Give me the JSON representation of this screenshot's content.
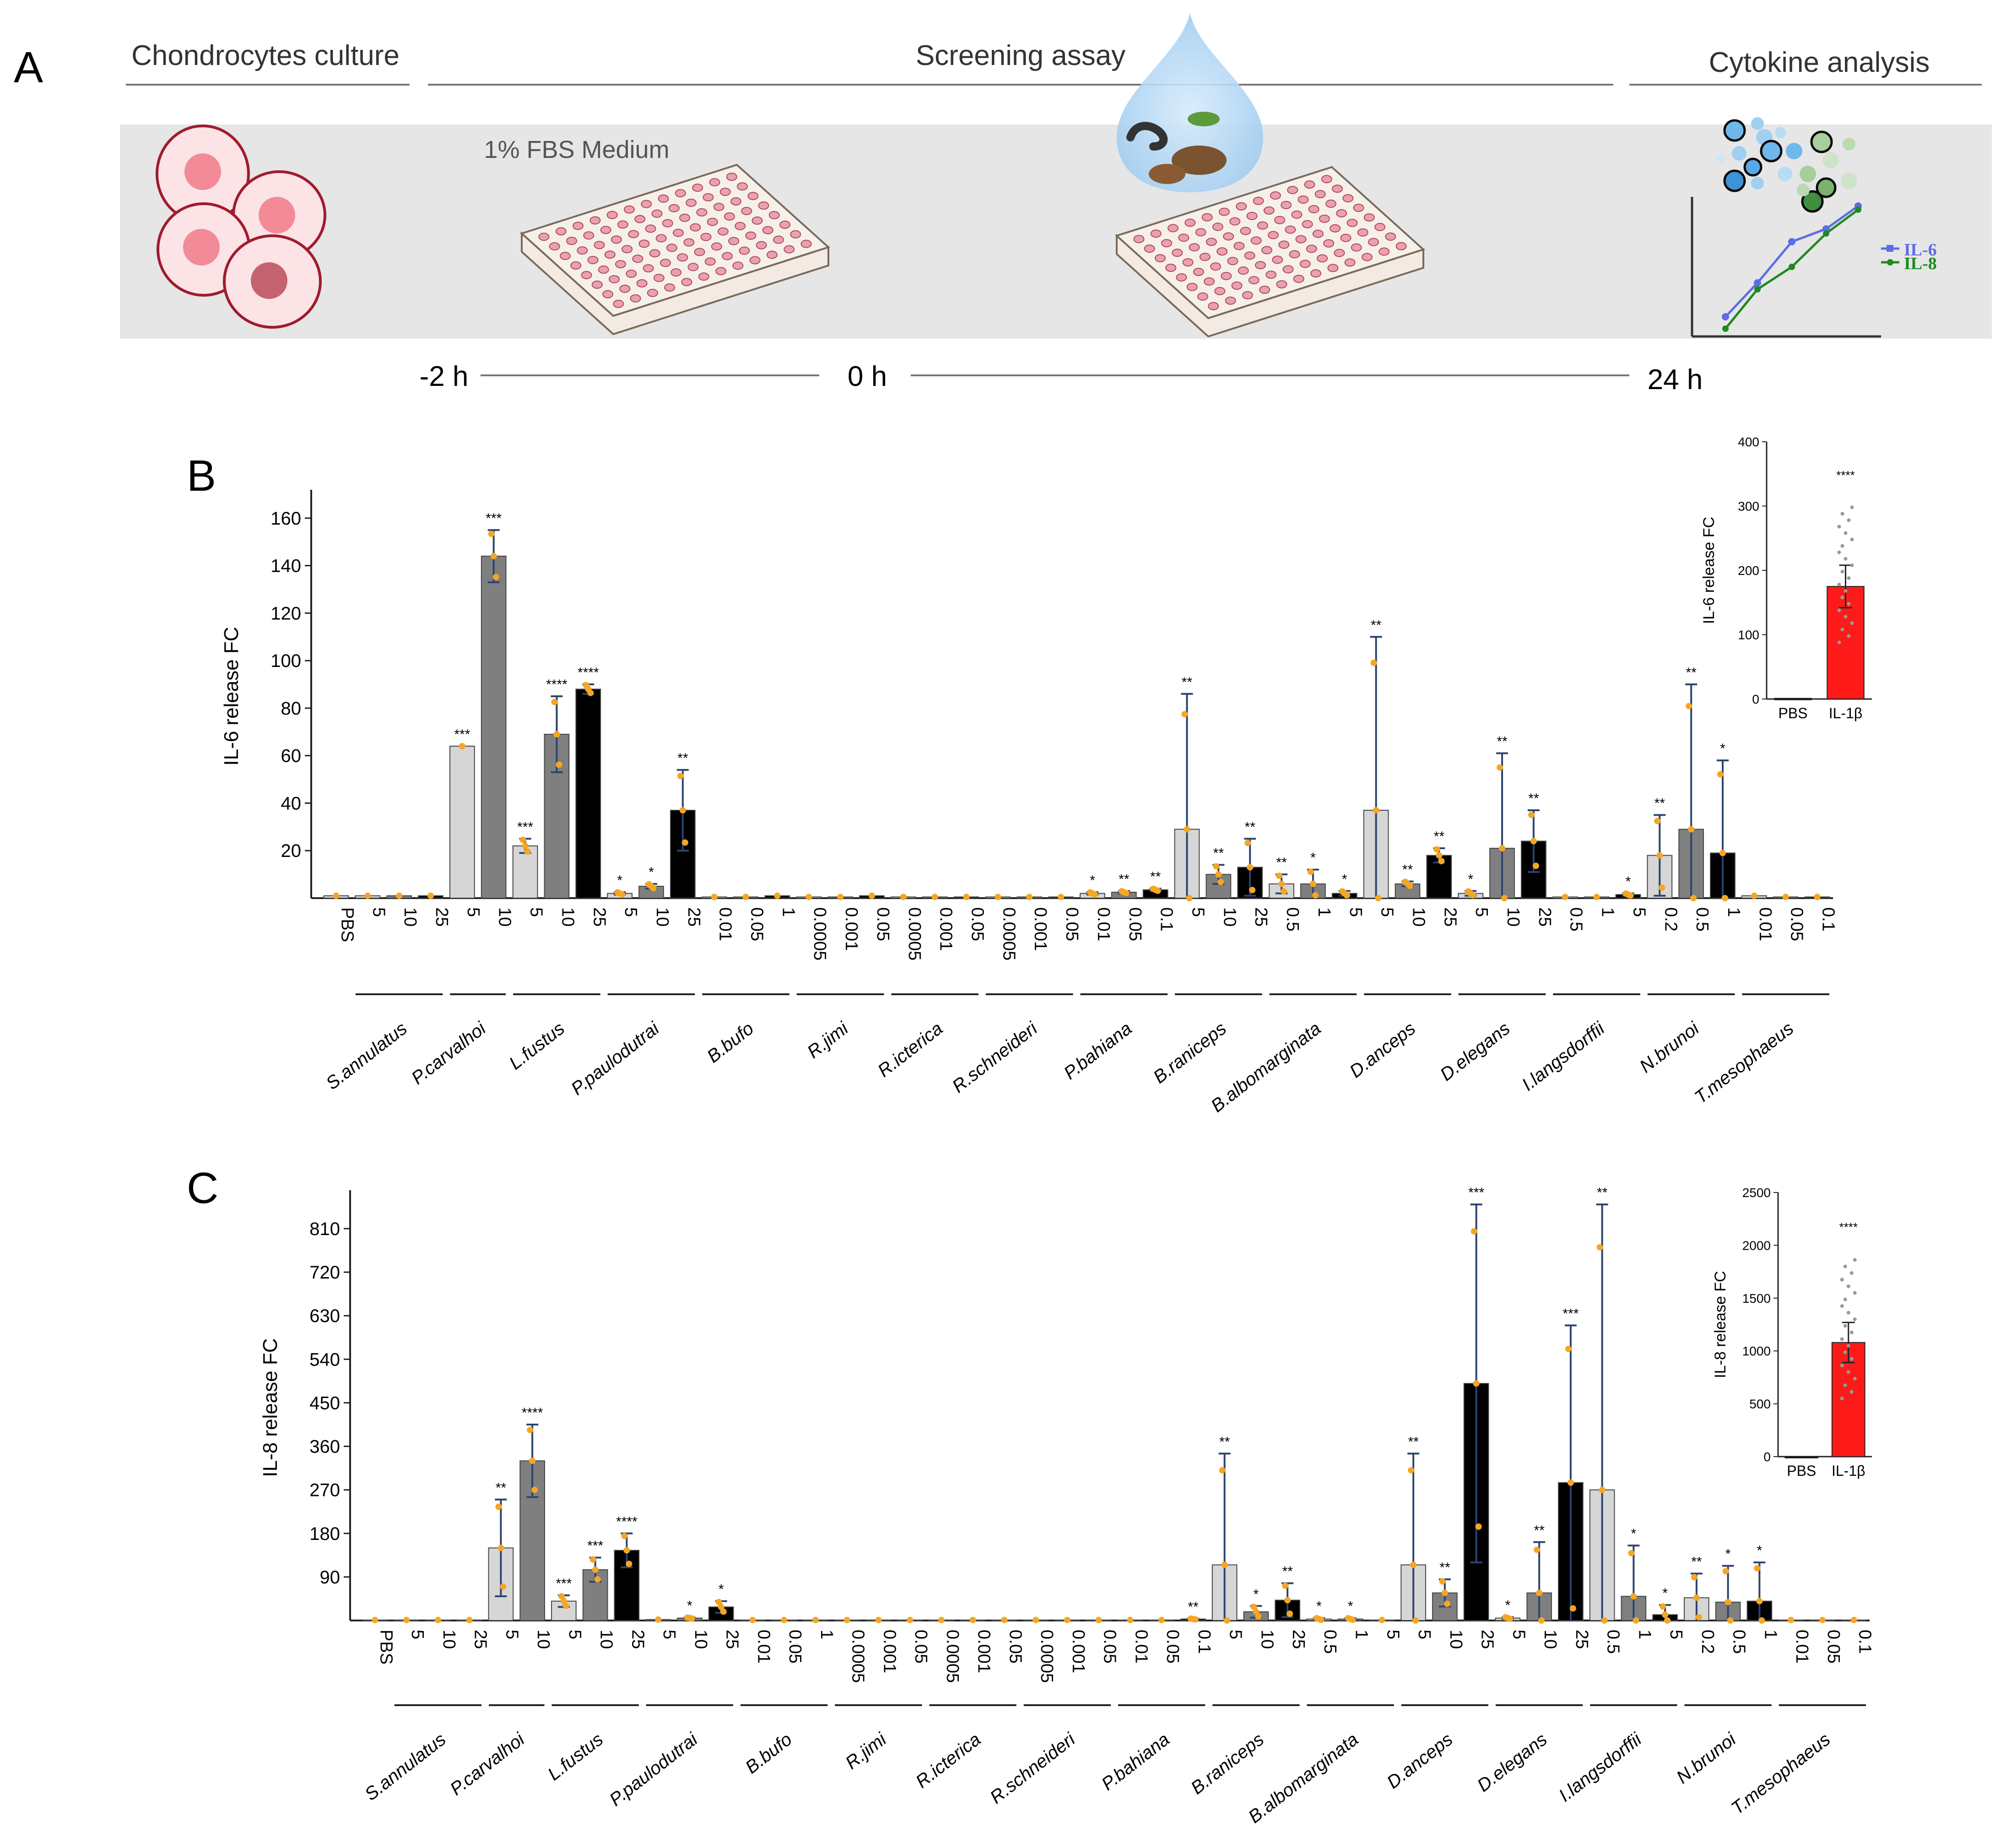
{
  "panel_a": {
    "letter": "A",
    "sections": [
      "Chondrocytes culture",
      "Screening assay",
      "Cytokine analysis"
    ],
    "medium_label": "1% FBS Medium",
    "timeline": [
      "-2 h",
      "0 h",
      "24 h"
    ],
    "legend": [
      {
        "label": "IL-6",
        "color": "#5b6de8"
      },
      {
        "label": "IL-8",
        "color": "#1f8a1f"
      }
    ]
  },
  "chart_data": [
    {
      "type": "bar",
      "panel": "B",
      "ylabel": "IL-6 release FC",
      "ylim": [
        0,
        170
      ],
      "yticks": [
        20,
        40,
        60,
        80,
        100,
        120,
        140,
        160
      ],
      "categories": [
        "PBS",
        "5",
        "10",
        "25",
        "5",
        "10",
        "5",
        "10",
        "25",
        "5",
        "10",
        "25",
        "0.01",
        "0.05",
        "1",
        "0.0005",
        "0.001",
        "0.05",
        "0.0005",
        "0.001",
        "0.05",
        "0.0005",
        "0.001",
        "0.05",
        "0.01",
        "0.05",
        "0.1",
        "5",
        "10",
        "25",
        "0.5",
        "1",
        "5",
        "5",
        "10",
        "25",
        "5",
        "10",
        "25",
        "0.5",
        "1",
        "5",
        "0.2",
        "0.5",
        "1",
        "0.01",
        "0.05",
        "0.1"
      ],
      "shades": [
        0,
        0,
        1,
        2,
        0,
        1,
        0,
        1,
        2,
        0,
        1,
        2,
        0,
        1,
        2,
        0,
        1,
        2,
        0,
        1,
        2,
        0,
        1,
        2,
        0,
        1,
        2,
        0,
        1,
        2,
        0,
        1,
        2,
        0,
        1,
        2,
        0,
        1,
        2,
        0,
        1,
        2,
        0,
        1,
        2,
        0,
        1,
        2
      ],
      "values": [
        1,
        1,
        1,
        1,
        64,
        144,
        22,
        69,
        88,
        2,
        5,
        37,
        0.5,
        0.5,
        1,
        0.5,
        0.5,
        1,
        0.5,
        0.5,
        0.5,
        0.5,
        0.5,
        0.5,
        2,
        2.5,
        3.5,
        29,
        10,
        13,
        6,
        6,
        2,
        37,
        6,
        18,
        2,
        21,
        24,
        0.5,
        0.5,
        1.5,
        18,
        29,
        19,
        1,
        0.5,
        0.5
      ],
      "errors": [
        0,
        0,
        0,
        0,
        0,
        11,
        3,
        16,
        2,
        0.5,
        1,
        17,
        0,
        0,
        0,
        0,
        0,
        0,
        0,
        0,
        0,
        0,
        0,
        0,
        0.5,
        0.5,
        0.5,
        57,
        4,
        12,
        4,
        6,
        1,
        73,
        1,
        3,
        1,
        40,
        13,
        0,
        0,
        0.5,
        17,
        61,
        39,
        0,
        0,
        0
      ],
      "significance": [
        "",
        "",
        "",
        "",
        "***",
        "***",
        "***",
        "****",
        "****",
        "*",
        "*",
        "**",
        "",
        "",
        "",
        "",
        "",
        "",
        "",
        "",
        "",
        "",
        "",
        "",
        "*",
        "**",
        "**",
        "**",
        "**",
        "**",
        "**",
        "*",
        "*",
        "**",
        "**",
        "**",
        "*",
        "**",
        "**",
        "",
        "",
        "*",
        "**",
        "**",
        "*",
        "",
        "",
        ""
      ],
      "groups": [
        {
          "name": "S.annulatus",
          "start": 1,
          "end": 3
        },
        {
          "name": "P.carvalhoi",
          "start": 4,
          "end": 5
        },
        {
          "name": "L.fustus",
          "start": 6,
          "end": 8
        },
        {
          "name": "P.paulodutrai",
          "start": 9,
          "end": 11
        },
        {
          "name": "B.bufo",
          "start": 12,
          "end": 14
        },
        {
          "name": "R.jimi",
          "start": 15,
          "end": 17
        },
        {
          "name": "R.icterica",
          "start": 18,
          "end": 20
        },
        {
          "name": "R.schneideri",
          "start": 21,
          "end": 23
        },
        {
          "name": "P.bahiana",
          "start": 24,
          "end": 26
        },
        {
          "name": "B.raniceps",
          "start": 27,
          "end": 29
        },
        {
          "name": "B.albomarginata",
          "start": 30,
          "end": 32
        },
        {
          "name": "D.anceps",
          "start": 33,
          "end": 35
        },
        {
          "name": "D.elegans",
          "start": 36,
          "end": 38
        },
        {
          "name": "I.langsdorffii",
          "start": 39,
          "end": 41
        },
        {
          "name": "N.brunoi",
          "start": 42,
          "end": 44
        },
        {
          "name": "T.mesophaeus",
          "start": 45,
          "end": 47
        }
      ],
      "inset": {
        "ylabel": "IL-6 release FC",
        "ylim": [
          0,
          400
        ],
        "yticks": [
          0,
          100,
          200,
          300,
          400
        ],
        "categories": [
          "PBS",
          "IL-1β"
        ],
        "values": [
          1,
          175
        ],
        "errors": [
          0,
          33
        ],
        "significance": "****",
        "bar_color": "#ff1a1a"
      }
    },
    {
      "type": "bar",
      "panel": "C",
      "ylabel": "IL-8 release FC",
      "ylim": [
        0,
        880
      ],
      "yticks": [
        90,
        180,
        270,
        360,
        450,
        540,
        630,
        720,
        810
      ],
      "categories": [
        "PBS",
        "5",
        "10",
        "25",
        "5",
        "10",
        "5",
        "10",
        "25",
        "5",
        "10",
        "25",
        "0.01",
        "0.05",
        "1",
        "0.0005",
        "0.001",
        "0.05",
        "0.0005",
        "0.001",
        "0.05",
        "0.0005",
        "0.001",
        "0.05",
        "0.01",
        "0.05",
        "0.1",
        "5",
        "10",
        "25",
        "0.5",
        "1",
        "5",
        "5",
        "10",
        "25",
        "5",
        "10",
        "25",
        "0.5",
        "1",
        "5",
        "0.2",
        "0.5",
        "1",
        "0.01",
        "0.05",
        "0.1"
      ],
      "shades": [
        0,
        0,
        1,
        2,
        0,
        1,
        0,
        1,
        2,
        0,
        1,
        2,
        0,
        1,
        2,
        0,
        1,
        2,
        0,
        1,
        2,
        0,
        1,
        2,
        0,
        1,
        2,
        0,
        1,
        2,
        0,
        1,
        2,
        0,
        1,
        2,
        0,
        1,
        2,
        0,
        1,
        2,
        0,
        1,
        2,
        0,
        1,
        2
      ],
      "values": [
        1,
        1,
        1,
        1,
        150,
        330,
        40,
        105,
        145,
        2,
        5,
        28,
        1,
        1,
        1,
        1,
        1,
        1,
        1,
        1,
        1,
        1,
        1,
        1,
        1,
        1,
        3,
        115,
        18,
        42,
        3,
        3,
        1,
        115,
        57,
        490,
        5,
        57,
        285,
        270,
        50,
        12,
        47,
        38,
        40,
        1,
        1,
        1
      ],
      "errors": [
        0,
        0,
        0,
        0,
        100,
        75,
        12,
        25,
        35,
        0,
        1,
        12,
        0,
        0,
        0,
        0,
        0,
        0,
        0,
        0,
        0,
        0,
        0,
        0,
        0,
        0,
        1,
        230,
        12,
        35,
        2,
        2,
        0,
        230,
        28,
        370,
        2,
        105,
        325,
        590,
        105,
        20,
        50,
        75,
        80,
        0,
        0,
        0
      ],
      "significance": [
        "",
        "",
        "",
        "",
        "**",
        "****",
        "***",
        "***",
        "****",
        "",
        "*",
        "*",
        "",
        "",
        "",
        "",
        "",
        "",
        "",
        "",
        "",
        "",
        "",
        "",
        "",
        "",
        "**",
        "**",
        "*",
        "**",
        "*",
        "*",
        "",
        "**",
        "**",
        "***",
        "*",
        "**",
        "***",
        "**",
        "*",
        "*",
        "**",
        "*",
        "*",
        "",
        "",
        ""
      ],
      "groups": [
        {
          "name": "S.annulatus",
          "start": 1,
          "end": 3
        },
        {
          "name": "P.carvalhoi",
          "start": 4,
          "end": 5
        },
        {
          "name": "L.fustus",
          "start": 6,
          "end": 8
        },
        {
          "name": "P.paulodutrai",
          "start": 9,
          "end": 11
        },
        {
          "name": "B.bufo",
          "start": 12,
          "end": 14
        },
        {
          "name": "R.jimi",
          "start": 15,
          "end": 17
        },
        {
          "name": "R.icterica",
          "start": 18,
          "end": 20
        },
        {
          "name": "R.schneideri",
          "start": 21,
          "end": 23
        },
        {
          "name": "P.bahiana",
          "start": 24,
          "end": 26
        },
        {
          "name": "B.raniceps",
          "start": 27,
          "end": 29
        },
        {
          "name": "B.albomarginata",
          "start": 30,
          "end": 32
        },
        {
          "name": "D.anceps",
          "start": 33,
          "end": 35
        },
        {
          "name": "D.elegans",
          "start": 36,
          "end": 38
        },
        {
          "name": "I.langsdorffii",
          "start": 39,
          "end": 41
        },
        {
          "name": "N.brunoi",
          "start": 42,
          "end": 44
        },
        {
          "name": "T.mesophaeus",
          "start": 45,
          "end": 47
        }
      ],
      "inset": {
        "ylabel": "IL-8 release FC",
        "ylim": [
          0,
          2500
        ],
        "yticks": [
          0,
          500,
          1000,
          1500,
          2000,
          2500
        ],
        "categories": [
          "PBS",
          "IL-1β"
        ],
        "values": [
          1,
          1080
        ],
        "errors": [
          0,
          190
        ],
        "significance": "****",
        "bar_color": "#ff1a1a"
      }
    }
  ],
  "colors": {
    "shade0": "#d6d6d6",
    "shade1": "#7f7f7f",
    "shade2": "#000000",
    "errorbar": "#2c4470",
    "dots": "#f5a623",
    "band": "#e6e6e6"
  }
}
